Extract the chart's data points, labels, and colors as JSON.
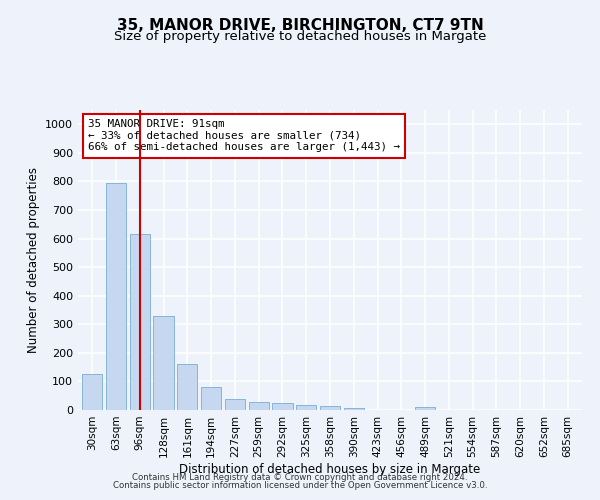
{
  "title1": "35, MANOR DRIVE, BIRCHINGTON, CT7 9TN",
  "title2": "Size of property relative to detached houses in Margate",
  "xlabel": "Distribution of detached houses by size in Margate",
  "ylabel": "Number of detached properties",
  "categories": [
    "30sqm",
    "63sqm",
    "96sqm",
    "128sqm",
    "161sqm",
    "194sqm",
    "227sqm",
    "259sqm",
    "292sqm",
    "325sqm",
    "358sqm",
    "390sqm",
    "423sqm",
    "456sqm",
    "489sqm",
    "521sqm",
    "554sqm",
    "587sqm",
    "620sqm",
    "652sqm",
    "685sqm"
  ],
  "values": [
    125,
    795,
    615,
    328,
    162,
    82,
    40,
    27,
    24,
    16,
    15,
    8,
    0,
    0,
    10,
    0,
    0,
    0,
    0,
    0,
    0
  ],
  "bar_color": "#c5d8f0",
  "bar_edge_color": "#7aadd4",
  "vline_x": 2,
  "vline_color": "#cc0000",
  "annotation_text": "35 MANOR DRIVE: 91sqm\n← 33% of detached houses are smaller (734)\n66% of semi-detached houses are larger (1,443) →",
  "annotation_box_color": "#ffffff",
  "annotation_box_edge_color": "#cc0000",
  "ylim": [
    0,
    1050
  ],
  "yticks": [
    0,
    100,
    200,
    300,
    400,
    500,
    600,
    700,
    800,
    900,
    1000
  ],
  "footer1": "Contains HM Land Registry data © Crown copyright and database right 2024.",
  "footer2": "Contains public sector information licensed under the Open Government Licence v3.0.",
  "bg_color": "#edf2fb",
  "plot_bg_color": "#edf2fb",
  "grid_color": "#ffffff",
  "title_fontsize": 11,
  "subtitle_fontsize": 9.5,
  "title_fontweight": "normal"
}
